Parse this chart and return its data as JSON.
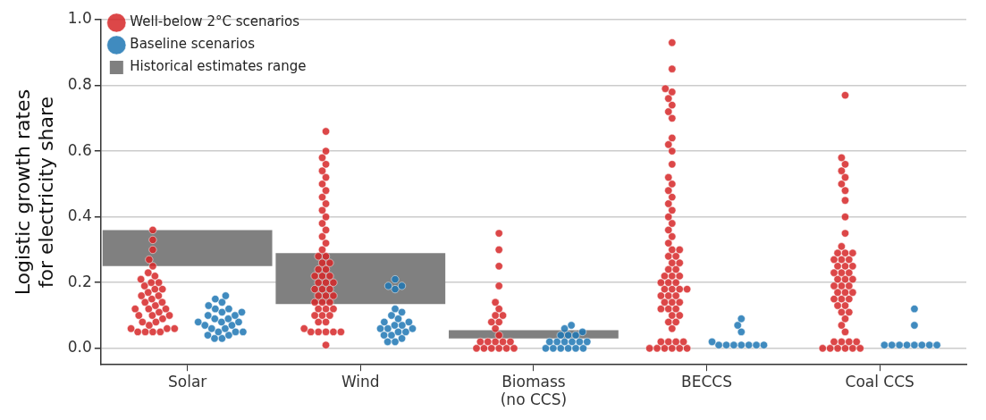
{
  "chart_data": {
    "type": "scatter",
    "ylabel": "Logistic growth rates\nfor electricity share",
    "categories": [
      "Solar",
      "Wind",
      "Biomass\n(no CCS)",
      "BECCS",
      "Coal CCS"
    ],
    "ylim": [
      -0.05,
      1.0
    ],
    "yticks": [
      {
        "value": 0,
        "label": "0.0"
      },
      {
        "value": 0.2,
        "label": "0.2"
      },
      {
        "value": 0.4,
        "label": "0.4"
      },
      {
        "value": 0.6,
        "label": "0.6"
      },
      {
        "value": 0.8,
        "label": "0.8"
      },
      {
        "value": 1,
        "label": "1.0"
      }
    ],
    "grid": "y",
    "legend": "top left",
    "marker": "circle",
    "series": [
      {
        "name": "Historical estimates range",
        "type": "bar",
        "color": "#808080",
        "x": [
          "Solar",
          "Wind",
          "Biomass\n(no CCS)",
          "BECCS",
          "Coal CCS"
        ],
        "base": [
          0.25,
          0.135,
          0.03,
          null,
          null
        ],
        "values": [
          0.11,
          0.155,
          0.025,
          null,
          null
        ]
      },
      {
        "name": "Well-below 2°C scenarios",
        "type": "scatter",
        "color": "#d62728",
        "x": [
          "Solar",
          "Solar",
          "Solar",
          "Solar",
          "Solar",
          "Solar",
          "Solar",
          "Solar",
          "Solar",
          "Solar",
          "Solar",
          "Solar",
          "Solar",
          "Solar",
          "Solar",
          "Solar",
          "Solar",
          "Solar",
          "Solar",
          "Solar",
          "Solar",
          "Solar",
          "Solar",
          "Solar",
          "Solar",
          "Solar",
          "Solar",
          "Solar",
          "Solar",
          "Solar",
          "Solar",
          "Solar",
          "Solar",
          "Solar",
          "Solar",
          "Solar",
          "Solar",
          "Solar"
        ],
        "values": [
          0.05,
          0.05,
          0.05,
          0.05,
          0.06,
          0.06,
          0.06,
          0.07,
          0.08,
          0.08,
          0.09,
          0.1,
          0.1,
          0.1,
          0.11,
          0.12,
          0.12,
          0.12,
          0.13,
          0.14,
          0.14,
          0.15,
          0.16,
          0.16,
          0.17,
          0.18,
          0.18,
          0.19,
          0.2,
          0.2,
          0.21,
          0.22,
          0.23,
          0.25,
          0.27,
          0.3,
          0.33,
          0.36
        ]
      },
      {
        "name": "Baseline scenarios",
        "type": "scatter",
        "color": "#1f77b4",
        "x": [
          "Solar",
          "Solar",
          "Solar",
          "Solar",
          "Solar",
          "Solar",
          "Solar",
          "Solar",
          "Solar",
          "Solar",
          "Solar",
          "Solar",
          "Solar",
          "Solar",
          "Solar",
          "Solar",
          "Solar",
          "Solar",
          "Solar",
          "Solar",
          "Solar",
          "Solar",
          "Solar",
          "Solar",
          "Solar",
          "Solar"
        ],
        "values": [
          0.03,
          0.03,
          0.04,
          0.04,
          0.05,
          0.05,
          0.05,
          0.06,
          0.06,
          0.07,
          0.07,
          0.08,
          0.08,
          0.08,
          0.09,
          0.09,
          0.1,
          0.1,
          0.11,
          0.11,
          0.12,
          0.12,
          0.13,
          0.14,
          0.15,
          0.16
        ]
      },
      {
        "type": "scatter",
        "color": "#d62728",
        "x": [
          "Wind",
          "Wind",
          "Wind",
          "Wind",
          "Wind",
          "Wind",
          "Wind",
          "Wind",
          "Wind",
          "Wind",
          "Wind",
          "Wind",
          "Wind",
          "Wind",
          "Wind",
          "Wind",
          "Wind",
          "Wind",
          "Wind",
          "Wind",
          "Wind",
          "Wind",
          "Wind",
          "Wind",
          "Wind",
          "Wind",
          "Wind",
          "Wind",
          "Wind",
          "Wind",
          "Wind",
          "Wind",
          "Wind",
          "Wind",
          "Wind",
          "Wind",
          "Wind",
          "Wind",
          "Wind",
          "Wind",
          "Wind",
          "Wind",
          "Wind",
          "Wind",
          "Wind",
          "Wind",
          "Wind",
          "Wind",
          "Wind",
          "Wind",
          "Wind",
          "Wind",
          "Wind"
        ],
        "values": [
          0.01,
          0.05,
          0.05,
          0.05,
          0.05,
          0.05,
          0.06,
          0.08,
          0.08,
          0.1,
          0.1,
          0.1,
          0.12,
          0.12,
          0.12,
          0.14,
          0.14,
          0.14,
          0.16,
          0.16,
          0.16,
          0.18,
          0.18,
          0.18,
          0.2,
          0.2,
          0.2,
          0.22,
          0.22,
          0.22,
          0.24,
          0.24,
          0.26,
          0.26,
          0.28,
          0.28,
          0.3,
          0.32,
          0.34,
          0.36,
          0.38,
          0.4,
          0.42,
          0.44,
          0.46,
          0.48,
          0.5,
          0.52,
          0.54,
          0.56,
          0.58,
          0.6,
          0.66
        ]
      },
      {
        "type": "scatter",
        "color": "#1f77b4",
        "x": [
          "Wind",
          "Wind",
          "Wind",
          "Wind",
          "Wind",
          "Wind",
          "Wind",
          "Wind",
          "Wind",
          "Wind",
          "Wind",
          "Wind",
          "Wind",
          "Wind",
          "Wind",
          "Wind",
          "Wind",
          "Wind",
          "Wind",
          "Wind",
          "Wind",
          "Wind"
        ],
        "values": [
          0.02,
          0.02,
          0.03,
          0.04,
          0.04,
          0.05,
          0.05,
          0.06,
          0.06,
          0.06,
          0.07,
          0.07,
          0.08,
          0.08,
          0.09,
          0.1,
          0.11,
          0.12,
          0.18,
          0.19,
          0.19,
          0.21
        ]
      },
      {
        "type": "scatter",
        "color": "#d62728",
        "x": [
          "Biomass\n(no CCS)",
          "Biomass\n(no CCS)",
          "Biomass\n(no CCS)",
          "Biomass\n(no CCS)",
          "Biomass\n(no CCS)",
          "Biomass\n(no CCS)",
          "Biomass\n(no CCS)",
          "Biomass\n(no CCS)",
          "Biomass\n(no CCS)",
          "Biomass\n(no CCS)",
          "Biomass\n(no CCS)",
          "Biomass\n(no CCS)",
          "Biomass\n(no CCS)",
          "Biomass\n(no CCS)",
          "Biomass\n(no CCS)",
          "Biomass\n(no CCS)",
          "Biomass\n(no CCS)",
          "Biomass\n(no CCS)",
          "Biomass\n(no CCS)",
          "Biomass\n(no CCS)",
          "Biomass\n(no CCS)",
          "Biomass\n(no CCS)",
          "Biomass\n(no CCS)"
        ],
        "values": [
          0,
          0,
          0,
          0,
          0,
          0,
          0.02,
          0.02,
          0.02,
          0.02,
          0.02,
          0.04,
          0.06,
          0.08,
          0.08,
          0.1,
          0.1,
          0.12,
          0.14,
          0.19,
          0.25,
          0.3,
          0.35
        ]
      },
      {
        "type": "scatter",
        "color": "#1f77b4",
        "x": [
          "Biomass\n(no CCS)",
          "Biomass\n(no CCS)",
          "Biomass\n(no CCS)",
          "Biomass\n(no CCS)",
          "Biomass\n(no CCS)",
          "Biomass\n(no CCS)",
          "Biomass\n(no CCS)",
          "Biomass\n(no CCS)",
          "Biomass\n(no CCS)",
          "Biomass\n(no CCS)",
          "Biomass\n(no CCS)",
          "Biomass\n(no CCS)",
          "Biomass\n(no CCS)",
          "Biomass\n(no CCS)",
          "Biomass\n(no CCS)",
          "Biomass\n(no CCS)",
          "Biomass\n(no CCS)",
          "Biomass\n(no CCS)"
        ],
        "values": [
          0,
          0,
          0,
          0,
          0,
          0,
          0.02,
          0.02,
          0.02,
          0.02,
          0.02,
          0.02,
          0.04,
          0.04,
          0.04,
          0.05,
          0.06,
          0.07
        ]
      },
      {
        "type": "scatter",
        "color": "#d62728",
        "x": [
          "BECCS",
          "BECCS",
          "BECCS",
          "BECCS",
          "BECCS",
          "BECCS",
          "BECCS",
          "BECCS",
          "BECCS",
          "BECCS",
          "BECCS",
          "BECCS",
          "BECCS",
          "BECCS",
          "BECCS",
          "BECCS",
          "BECCS",
          "BECCS",
          "BECCS",
          "BECCS",
          "BECCS",
          "BECCS",
          "BECCS",
          "BECCS",
          "BECCS",
          "BECCS",
          "BECCS",
          "BECCS",
          "BECCS",
          "BECCS",
          "BECCS",
          "BECCS",
          "BECCS",
          "BECCS",
          "BECCS",
          "BECCS",
          "BECCS",
          "BECCS",
          "BECCS",
          "BECCS",
          "BECCS",
          "BECCS",
          "BECCS",
          "BECCS",
          "BECCS",
          "BECCS",
          "BECCS",
          "BECCS",
          "BECCS",
          "BECCS",
          "BECCS",
          "BECCS",
          "BECCS",
          "BECCS",
          "BECCS",
          "BECCS",
          "BECCS",
          "BECCS",
          "BECCS",
          "BECCS",
          "BECCS",
          "BECCS",
          "BECCS",
          "BECCS",
          "BECCS"
        ],
        "values": [
          0,
          0,
          0,
          0,
          0,
          0,
          0.02,
          0.02,
          0.02,
          0.02,
          0.06,
          0.08,
          0.08,
          0.1,
          0.1,
          0.12,
          0.12,
          0.12,
          0.14,
          0.14,
          0.14,
          0.16,
          0.16,
          0.16,
          0.18,
          0.18,
          0.18,
          0.18,
          0.2,
          0.2,
          0.2,
          0.22,
          0.22,
          0.22,
          0.24,
          0.24,
          0.26,
          0.26,
          0.28,
          0.28,
          0.3,
          0.3,
          0.32,
          0.34,
          0.36,
          0.38,
          0.4,
          0.42,
          0.44,
          0.46,
          0.48,
          0.5,
          0.52,
          0.56,
          0.6,
          0.62,
          0.64,
          0.7,
          0.72,
          0.74,
          0.76,
          0.78,
          0.79,
          0.85,
          0.93
        ]
      },
      {
        "type": "scatter",
        "color": "#1f77b4",
        "x": [
          "BECCS",
          "BECCS",
          "BECCS",
          "BECCS",
          "BECCS",
          "BECCS",
          "BECCS",
          "BECCS",
          "BECCS",
          "BECCS",
          "BECCS"
        ],
        "values": [
          0.01,
          0.01,
          0.01,
          0.01,
          0.01,
          0.01,
          0.01,
          0.02,
          0.05,
          0.07,
          0.09
        ]
      },
      {
        "type": "scatter",
        "color": "#d62728",
        "x": [
          "Coal CCS",
          "Coal CCS",
          "Coal CCS",
          "Coal CCS",
          "Coal CCS",
          "Coal CCS",
          "Coal CCS",
          "Coal CCS",
          "Coal CCS",
          "Coal CCS",
          "Coal CCS",
          "Coal CCS",
          "Coal CCS",
          "Coal CCS",
          "Coal CCS",
          "Coal CCS",
          "Coal CCS",
          "Coal CCS",
          "Coal CCS",
          "Coal CCS",
          "Coal CCS",
          "Coal CCS",
          "Coal CCS",
          "Coal CCS",
          "Coal CCS",
          "Coal CCS",
          "Coal CCS",
          "Coal CCS",
          "Coal CCS",
          "Coal CCS",
          "Coal CCS",
          "Coal CCS",
          "Coal CCS",
          "Coal CCS",
          "Coal CCS",
          "Coal CCS",
          "Coal CCS",
          "Coal CCS",
          "Coal CCS",
          "Coal CCS",
          "Coal CCS",
          "Coal CCS",
          "Coal CCS",
          "Coal CCS",
          "Coal CCS",
          "Coal CCS",
          "Coal CCS",
          "Coal CCS",
          "Coal CCS",
          "Coal CCS",
          "Coal CCS",
          "Coal CCS"
        ],
        "values": [
          0,
          0,
          0,
          0,
          0,
          0,
          0.02,
          0.02,
          0.02,
          0.02,
          0.05,
          0.07,
          0.09,
          0.11,
          0.11,
          0.13,
          0.13,
          0.15,
          0.15,
          0.15,
          0.17,
          0.17,
          0.17,
          0.19,
          0.19,
          0.19,
          0.21,
          0.21,
          0.21,
          0.23,
          0.23,
          0.23,
          0.25,
          0.25,
          0.25,
          0.27,
          0.27,
          0.27,
          0.29,
          0.29,
          0.29,
          0.31,
          0.35,
          0.4,
          0.45,
          0.48,
          0.5,
          0.52,
          0.54,
          0.56,
          0.58,
          0.77
        ]
      },
      {
        "type": "scatter",
        "color": "#1f77b4",
        "x": [
          "Coal CCS",
          "Coal CCS",
          "Coal CCS",
          "Coal CCS",
          "Coal CCS",
          "Coal CCS",
          "Coal CCS",
          "Coal CCS",
          "Coal CCS",
          "Coal CCS"
        ],
        "values": [
          0.01,
          0.01,
          0.01,
          0.01,
          0.01,
          0.01,
          0.01,
          0.01,
          0.07,
          0.12
        ]
      }
    ]
  }
}
